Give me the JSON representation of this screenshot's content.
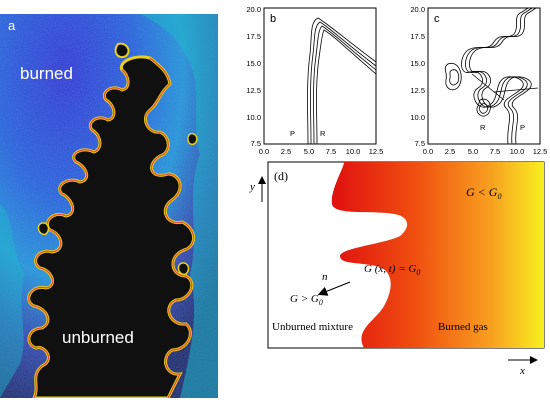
{
  "panel_a": {
    "label": "a",
    "burned": "burned",
    "unburned": "unburned"
  },
  "panel_b": {
    "label": "b",
    "x_ticks": [
      "0.0",
      "2.5",
      "5.0",
      "7.5",
      "10.0",
      "12.5"
    ],
    "y_ticks": [
      "20.0",
      "17.5",
      "15.0",
      "12.5",
      "10.0",
      "7.5"
    ],
    "marker_p": "P",
    "marker_r": "R"
  },
  "panel_c": {
    "label": "c",
    "x_ticks": [
      "0.0",
      "2.5",
      "5.0",
      "7.5",
      "10.0",
      "12.5"
    ],
    "y_ticks": [
      "20.0",
      "17.5",
      "15.0",
      "12.5",
      "10.0",
      "7.5"
    ],
    "marker_r": "R",
    "marker_p": "P"
  },
  "panel_d": {
    "label": "(d)",
    "y_axis": "y",
    "x_axis": "x",
    "g_less": "G < G",
    "g_less_sub": "0",
    "g_front": "G (x, t) = G",
    "g_front_sub": "0",
    "normal": "n",
    "g_greater": "G > G",
    "g_greater_sub": "0",
    "unburned": "Unburned mixture",
    "burned_gas": "Burned gas"
  }
}
